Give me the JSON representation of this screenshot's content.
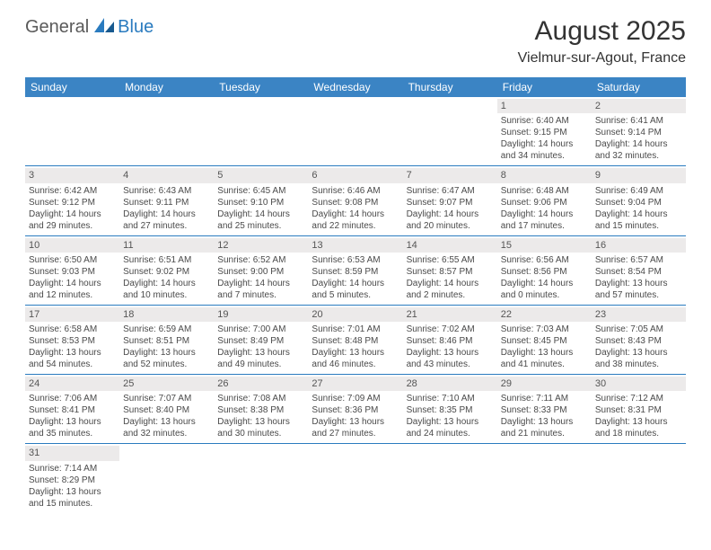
{
  "logo": {
    "general": "General",
    "blue": "Blue"
  },
  "title": "August 2025",
  "location": "Vielmur-sur-Agout, France",
  "colors": {
    "header_bg": "#3b84c4",
    "row_divider": "#2a7bbf",
    "daynum_bg": "#eceaea",
    "text": "#4a4a4a",
    "logo_gray": "#5a5a5a",
    "logo_blue": "#2a7bbf"
  },
  "day_headers": [
    "Sunday",
    "Monday",
    "Tuesday",
    "Wednesday",
    "Thursday",
    "Friday",
    "Saturday"
  ],
  "weeks": [
    [
      null,
      null,
      null,
      null,
      null,
      {
        "n": "1",
        "sunrise": "Sunrise: 6:40 AM",
        "sunset": "Sunset: 9:15 PM",
        "daylight": "Daylight: 14 hours and 34 minutes."
      },
      {
        "n": "2",
        "sunrise": "Sunrise: 6:41 AM",
        "sunset": "Sunset: 9:14 PM",
        "daylight": "Daylight: 14 hours and 32 minutes."
      }
    ],
    [
      {
        "n": "3",
        "sunrise": "Sunrise: 6:42 AM",
        "sunset": "Sunset: 9:12 PM",
        "daylight": "Daylight: 14 hours and 29 minutes."
      },
      {
        "n": "4",
        "sunrise": "Sunrise: 6:43 AM",
        "sunset": "Sunset: 9:11 PM",
        "daylight": "Daylight: 14 hours and 27 minutes."
      },
      {
        "n": "5",
        "sunrise": "Sunrise: 6:45 AM",
        "sunset": "Sunset: 9:10 PM",
        "daylight": "Daylight: 14 hours and 25 minutes."
      },
      {
        "n": "6",
        "sunrise": "Sunrise: 6:46 AM",
        "sunset": "Sunset: 9:08 PM",
        "daylight": "Daylight: 14 hours and 22 minutes."
      },
      {
        "n": "7",
        "sunrise": "Sunrise: 6:47 AM",
        "sunset": "Sunset: 9:07 PM",
        "daylight": "Daylight: 14 hours and 20 minutes."
      },
      {
        "n": "8",
        "sunrise": "Sunrise: 6:48 AM",
        "sunset": "Sunset: 9:06 PM",
        "daylight": "Daylight: 14 hours and 17 minutes."
      },
      {
        "n": "9",
        "sunrise": "Sunrise: 6:49 AM",
        "sunset": "Sunset: 9:04 PM",
        "daylight": "Daylight: 14 hours and 15 minutes."
      }
    ],
    [
      {
        "n": "10",
        "sunrise": "Sunrise: 6:50 AM",
        "sunset": "Sunset: 9:03 PM",
        "daylight": "Daylight: 14 hours and 12 minutes."
      },
      {
        "n": "11",
        "sunrise": "Sunrise: 6:51 AM",
        "sunset": "Sunset: 9:02 PM",
        "daylight": "Daylight: 14 hours and 10 minutes."
      },
      {
        "n": "12",
        "sunrise": "Sunrise: 6:52 AM",
        "sunset": "Sunset: 9:00 PM",
        "daylight": "Daylight: 14 hours and 7 minutes."
      },
      {
        "n": "13",
        "sunrise": "Sunrise: 6:53 AM",
        "sunset": "Sunset: 8:59 PM",
        "daylight": "Daylight: 14 hours and 5 minutes."
      },
      {
        "n": "14",
        "sunrise": "Sunrise: 6:55 AM",
        "sunset": "Sunset: 8:57 PM",
        "daylight": "Daylight: 14 hours and 2 minutes."
      },
      {
        "n": "15",
        "sunrise": "Sunrise: 6:56 AM",
        "sunset": "Sunset: 8:56 PM",
        "daylight": "Daylight: 14 hours and 0 minutes."
      },
      {
        "n": "16",
        "sunrise": "Sunrise: 6:57 AM",
        "sunset": "Sunset: 8:54 PM",
        "daylight": "Daylight: 13 hours and 57 minutes."
      }
    ],
    [
      {
        "n": "17",
        "sunrise": "Sunrise: 6:58 AM",
        "sunset": "Sunset: 8:53 PM",
        "daylight": "Daylight: 13 hours and 54 minutes."
      },
      {
        "n": "18",
        "sunrise": "Sunrise: 6:59 AM",
        "sunset": "Sunset: 8:51 PM",
        "daylight": "Daylight: 13 hours and 52 minutes."
      },
      {
        "n": "19",
        "sunrise": "Sunrise: 7:00 AM",
        "sunset": "Sunset: 8:49 PM",
        "daylight": "Daylight: 13 hours and 49 minutes."
      },
      {
        "n": "20",
        "sunrise": "Sunrise: 7:01 AM",
        "sunset": "Sunset: 8:48 PM",
        "daylight": "Daylight: 13 hours and 46 minutes."
      },
      {
        "n": "21",
        "sunrise": "Sunrise: 7:02 AM",
        "sunset": "Sunset: 8:46 PM",
        "daylight": "Daylight: 13 hours and 43 minutes."
      },
      {
        "n": "22",
        "sunrise": "Sunrise: 7:03 AM",
        "sunset": "Sunset: 8:45 PM",
        "daylight": "Daylight: 13 hours and 41 minutes."
      },
      {
        "n": "23",
        "sunrise": "Sunrise: 7:05 AM",
        "sunset": "Sunset: 8:43 PM",
        "daylight": "Daylight: 13 hours and 38 minutes."
      }
    ],
    [
      {
        "n": "24",
        "sunrise": "Sunrise: 7:06 AM",
        "sunset": "Sunset: 8:41 PM",
        "daylight": "Daylight: 13 hours and 35 minutes."
      },
      {
        "n": "25",
        "sunrise": "Sunrise: 7:07 AM",
        "sunset": "Sunset: 8:40 PM",
        "daylight": "Daylight: 13 hours and 32 minutes."
      },
      {
        "n": "26",
        "sunrise": "Sunrise: 7:08 AM",
        "sunset": "Sunset: 8:38 PM",
        "daylight": "Daylight: 13 hours and 30 minutes."
      },
      {
        "n": "27",
        "sunrise": "Sunrise: 7:09 AM",
        "sunset": "Sunset: 8:36 PM",
        "daylight": "Daylight: 13 hours and 27 minutes."
      },
      {
        "n": "28",
        "sunrise": "Sunrise: 7:10 AM",
        "sunset": "Sunset: 8:35 PM",
        "daylight": "Daylight: 13 hours and 24 minutes."
      },
      {
        "n": "29",
        "sunrise": "Sunrise: 7:11 AM",
        "sunset": "Sunset: 8:33 PM",
        "daylight": "Daylight: 13 hours and 21 minutes."
      },
      {
        "n": "30",
        "sunrise": "Sunrise: 7:12 AM",
        "sunset": "Sunset: 8:31 PM",
        "daylight": "Daylight: 13 hours and 18 minutes."
      }
    ],
    [
      {
        "n": "31",
        "sunrise": "Sunrise: 7:14 AM",
        "sunset": "Sunset: 8:29 PM",
        "daylight": "Daylight: 13 hours and 15 minutes."
      },
      null,
      null,
      null,
      null,
      null,
      null
    ]
  ]
}
